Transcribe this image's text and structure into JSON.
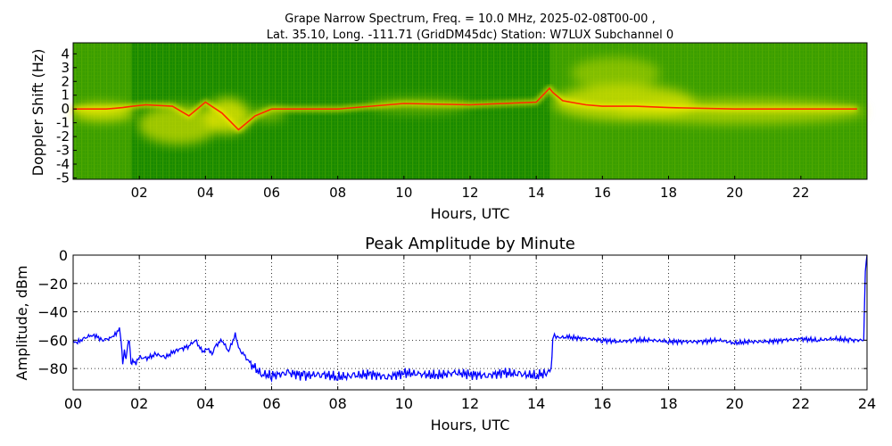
{
  "spectrogram": {
    "title_line1": "Grape Narrow Spectrum, Freq. = 10.0 MHz, 2025-02-08T00-00 ,",
    "title_line2": "Lat.  35.10, Long. -111.71 (GridDM45dc) Station: W7LUX Subchannel 0",
    "ylabel": "Doppler Shift (Hz)",
    "xlabel": "Hours, UTC",
    "colors": {
      "background": "#1a8a00",
      "mid": "#e8e800",
      "peak": "#ff2a00"
    }
  },
  "chart_data": [
    {
      "type": "heatmap",
      "title": "Grape Narrow Spectrum, Freq. = 10.0 MHz, 2025-02-08T00-00 , Lat.  35.10, Long. -111.71 (GridDM45dc) Station: W7LUX Subchannel 0",
      "xlabel": "Hours, UTC",
      "ylabel": "Doppler Shift (Hz)",
      "xlim": [
        0,
        24
      ],
      "ylim": [
        -5,
        5
      ],
      "x_ticks": [
        2,
        4,
        6,
        8,
        10,
        12,
        14,
        16,
        18,
        20,
        22
      ],
      "x_tick_labels": [
        "02",
        "04",
        "06",
        "08",
        "10",
        "12",
        "14",
        "16",
        "18",
        "20",
        "22"
      ],
      "y_ticks": [
        4,
        3,
        2,
        1,
        0,
        -1,
        -2,
        -3,
        -4,
        -5
      ],
      "y_tick_labels": [
        "4",
        "3",
        "2",
        "1",
        "0",
        "-1",
        "-2",
        "-3",
        "-4",
        "-5"
      ],
      "carrier_trace": {
        "x": [
          0,
          0.5,
          1,
          1.5,
          1.8,
          2.2,
          3,
          3.5,
          4,
          4.5,
          5,
          5.5,
          6,
          8,
          10,
          12,
          14,
          14.4,
          14.5,
          14.8,
          15.5,
          16,
          17,
          18,
          20,
          22,
          23.7
        ],
        "y": [
          0,
          0,
          0,
          0.1,
          0.2,
          0.3,
          0.2,
          -0.5,
          0.5,
          -0.3,
          -1.5,
          -0.5,
          0,
          0,
          0.4,
          0.3,
          0.5,
          1.5,
          1.2,
          0.6,
          0.3,
          0.2,
          0.2,
          0.1,
          0,
          0,
          0
        ]
      }
    },
    {
      "type": "line",
      "title": "Peak Amplitude by Minute",
      "xlabel": "Hours, UTC",
      "ylabel": "Amplitude, dBm",
      "xlim": [
        0,
        24
      ],
      "ylim": [
        -95,
        0
      ],
      "grid": true,
      "x_ticks": [
        0,
        2,
        4,
        6,
        8,
        10,
        12,
        14,
        16,
        18,
        20,
        22,
        24
      ],
      "x_tick_labels": [
        "00",
        "02",
        "04",
        "06",
        "08",
        "10",
        "12",
        "14",
        "16",
        "18",
        "20",
        "22",
        "24"
      ],
      "y_ticks": [
        0,
        -20,
        -40,
        -60,
        -80
      ],
      "y_tick_labels": [
        "0",
        "−20",
        "−40",
        "−60",
        "−80"
      ],
      "color": "#0000ff",
      "x": [
        0,
        0.1,
        0.3,
        0.6,
        0.9,
        1.2,
        1.4,
        1.45,
        1.5,
        1.55,
        1.6,
        1.65,
        1.7,
        1.75,
        1.8,
        1.9,
        2.0,
        2.2,
        2.5,
        2.8,
        3.1,
        3.3,
        3.5,
        3.7,
        3.9,
        4.1,
        4.2,
        4.3,
        4.5,
        4.7,
        4.9,
        5.0,
        5.1,
        5.3,
        5.5,
        5.7,
        6.0,
        6.5,
        7.0,
        7.5,
        8.0,
        8.5,
        9.0,
        9.5,
        10.0,
        10.5,
        11.0,
        11.5,
        12.0,
        12.5,
        13.0,
        13.5,
        14.0,
        14.3,
        14.45,
        14.5,
        14.55,
        14.6,
        15.0,
        15.5,
        16.0,
        16.5,
        17.0,
        17.5,
        18.0,
        18.5,
        19.0,
        19.5,
        20.0,
        20.5,
        21.0,
        21.5,
        22.0,
        22.5,
        23.0,
        23.5,
        23.9,
        23.95,
        24.0
      ],
      "y": [
        -60,
        -62,
        -59,
        -56,
        -60,
        -58,
        -52,
        -60,
        -76,
        -68,
        -74,
        -62,
        -60,
        -78,
        -74,
        -76,
        -72,
        -73,
        -70,
        -72,
        -67,
        -66,
        -64,
        -60,
        -68,
        -66,
        -71,
        -64,
        -60,
        -68,
        -56,
        -65,
        -68,
        -75,
        -80,
        -84,
        -85,
        -83,
        -85,
        -84,
        -86,
        -85,
        -84,
        -86,
        -83,
        -84,
        -85,
        -83,
        -84,
        -85,
        -83,
        -84,
        -85,
        -83,
        -82,
        -60,
        -54,
        -58,
        -58,
        -59,
        -60,
        -61,
        -60,
        -60,
        -61,
        -61,
        -61,
        -60,
        -62,
        -61,
        -61,
        -60,
        -59,
        -60,
        -59,
        -60,
        -60,
        -10,
        0
      ]
    }
  ]
}
